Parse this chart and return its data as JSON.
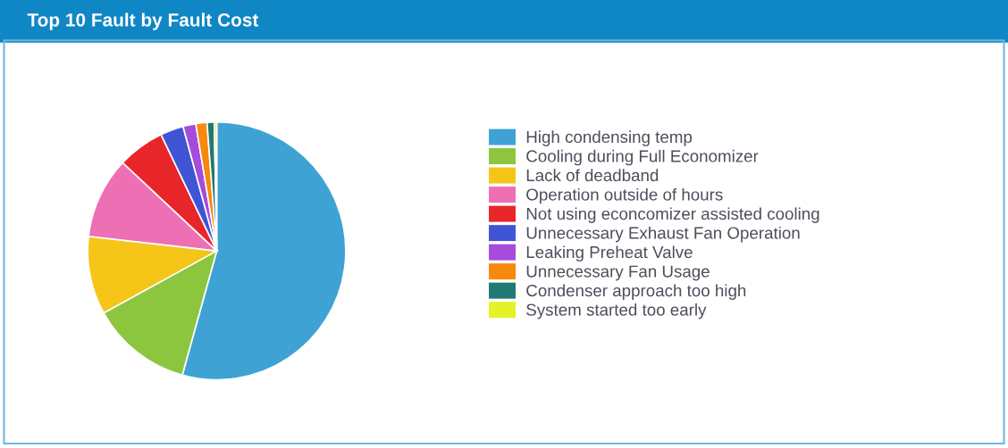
{
  "chart_data": {
    "type": "pie",
    "title": "Top 10 Fault by Fault Cost",
    "categories": [
      "High condensing temp",
      "Cooling during Full Economizer",
      "Lack of deadband",
      "Operation outside of hours",
      "Not using econcomizer assisted cooling",
      "Unnecessary Exhaust Fan Operation",
      "Leaking Preheat Valve",
      "Unnecessary Fan Usage",
      "Condenser approach too high",
      "System started too early"
    ],
    "values": [
      54.3,
      12.7,
      9.8,
      10.2,
      5.9,
      2.9,
      1.6,
      1.4,
      0.9,
      0.3
    ],
    "colors": [
      "#3ea3d4",
      "#8cc63f",
      "#f5c518",
      "#ef6fb5",
      "#e8262a",
      "#3f55d6",
      "#a64bdc",
      "#f7890e",
      "#1f7a73",
      "#e5f22a"
    ],
    "legend": "right"
  }
}
